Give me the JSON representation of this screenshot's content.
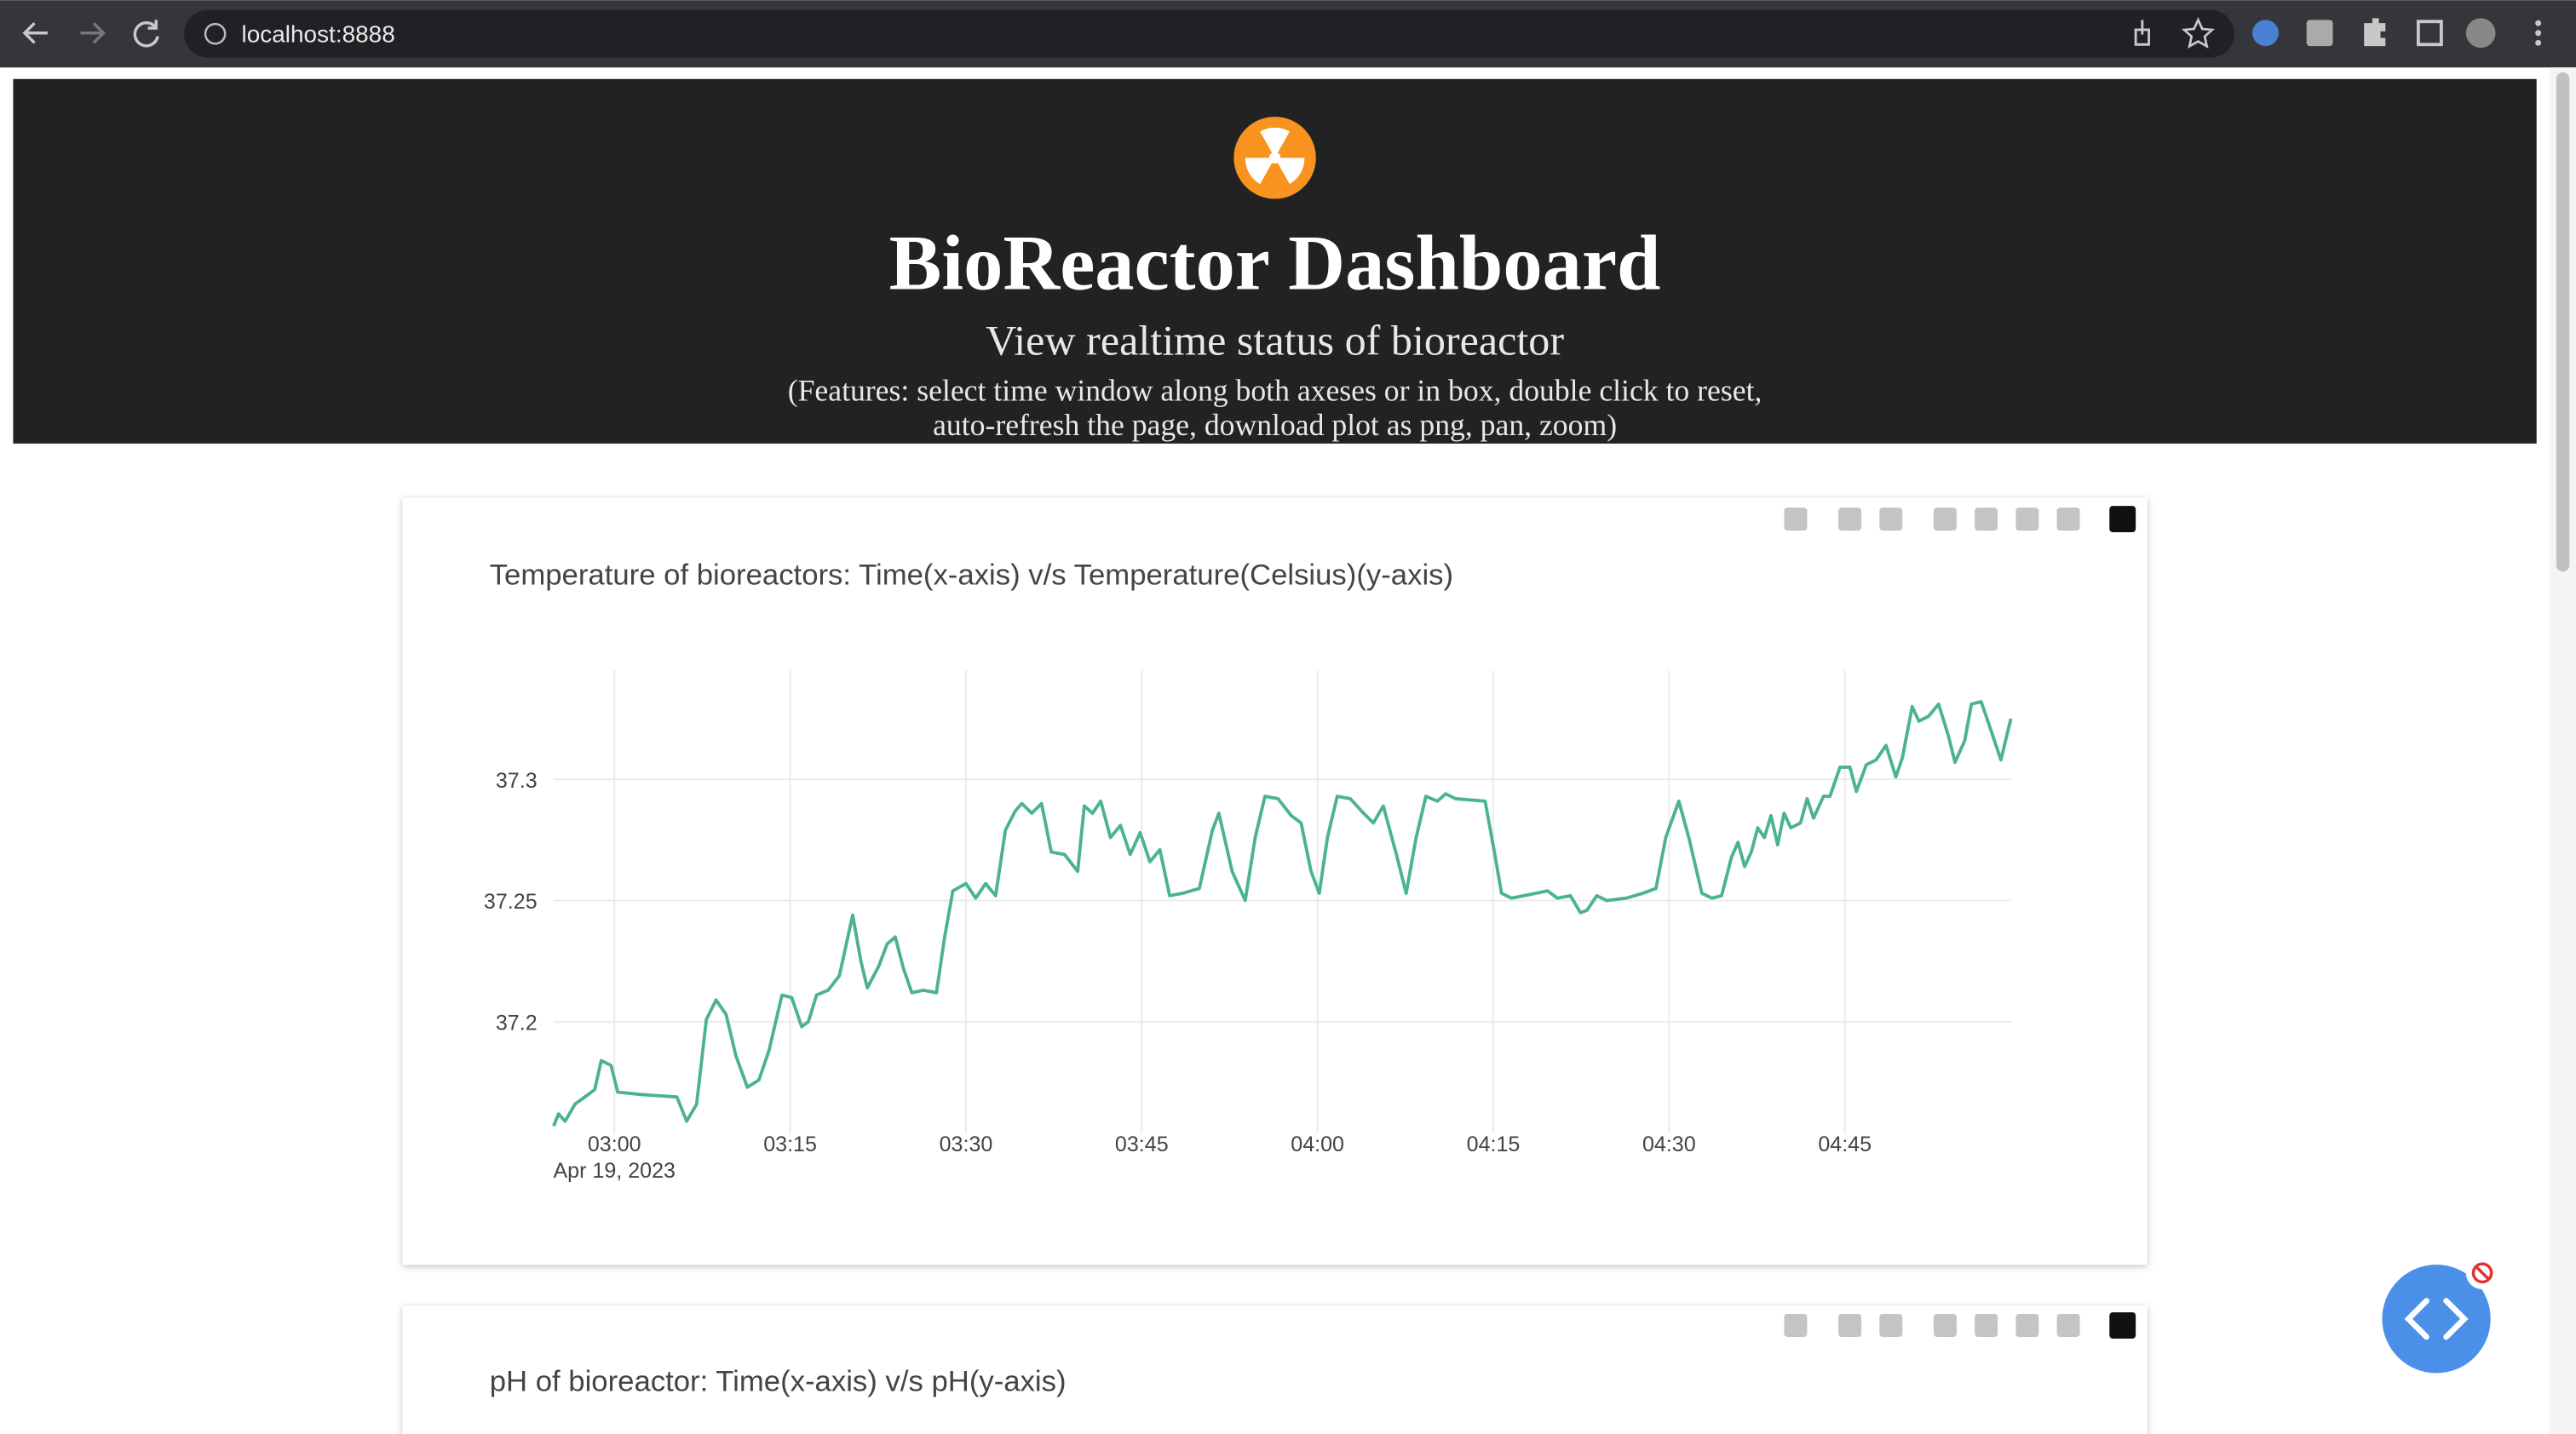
{
  "browser": {
    "url": "localhost:8888"
  },
  "header": {
    "title": "BioReactor Dashboard",
    "subtitle": "View realtime status of bioreactor",
    "features": [
      "(Features: select time window along both axeses or in box, double click to reset,",
      "auto-refresh the page, download plot as png, pan, zoom)"
    ]
  },
  "chart_data": [
    {
      "type": "line",
      "title": "Temperature of bioreactors: Time(x-axis) v/s Temperature(Celsius)(y-axis)",
      "x_date_label": "Apr 19, 2023",
      "xlim": [
        "2023-04-19 02:54:49",
        "2023-04-19 04:59:10"
      ],
      "xticks": [
        {
          "value": "2023-04-19 03:00:00",
          "label": "03:00"
        },
        {
          "value": "2023-04-19 03:15:00",
          "label": "03:15"
        },
        {
          "value": "2023-04-19 03:30:00",
          "label": "03:30"
        },
        {
          "value": "2023-04-19 03:45:00",
          "label": "03:45"
        },
        {
          "value": "2023-04-19 04:00:00",
          "label": "04:00"
        },
        {
          "value": "2023-04-19 04:15:00",
          "label": "04:15"
        },
        {
          "value": "2023-04-19 04:30:00",
          "label": "04:30"
        },
        {
          "value": "2023-04-19 04:45:00",
          "label": "04:45"
        }
      ],
      "ylim": [
        37.154,
        37.345
      ],
      "yticks": [
        37.2,
        37.25,
        37.3
      ],
      "grid": true,
      "x": [
        "2023-04-19 02:54:49",
        "2023-04-19 02:55:14",
        "2023-04-19 02:55:48",
        "2023-04-19 02:56:38",
        "2023-04-19 02:57:46",
        "2023-04-19 02:58:19",
        "2023-04-19 02:58:53",
        "2023-04-19 02:59:43",
        "2023-04-19 03:00:17",
        "2023-04-19 03:02:15",
        "2023-04-19 03:05:20",
        "2023-04-19 03:06:10",
        "2023-04-19 03:07:01",
        "2023-04-19 03:07:51",
        "2023-04-19 03:08:41",
        "2023-04-19 03:09:32",
        "2023-04-19 03:10:22",
        "2023-04-19 03:11:21",
        "2023-04-19 03:12:20",
        "2023-04-19 03:13:11",
        "2023-04-19 03:14:18",
        "2023-04-19 03:15:08",
        "2023-04-19 03:15:59",
        "2023-04-19 03:16:33",
        "2023-04-19 03:17:15",
        "2023-04-19 03:18:14",
        "2023-04-19 03:19:12",
        "2023-04-19 03:20:20",
        "2023-04-19 03:21:02",
        "2023-04-19 03:21:35",
        "2023-04-19 03:22:34",
        "2023-04-19 03:23:16",
        "2023-04-19 03:23:58",
        "2023-04-19 03:24:40",
        "2023-04-19 03:25:23",
        "2023-04-19 03:26:22",
        "2023-04-19 03:27:29",
        "2023-04-19 03:28:11",
        "2023-04-19 03:28:53",
        "2023-04-19 03:30:00",
        "2023-04-19 03:30:50",
        "2023-04-19 03:31:41",
        "2023-04-19 03:32:32",
        "2023-04-19 03:33:22",
        "2023-04-19 03:34:13",
        "2023-04-19 03:34:46",
        "2023-04-19 03:35:37",
        "2023-04-19 03:36:27",
        "2023-04-19 03:37:17",
        "2023-04-19 03:38:25",
        "2023-04-19 03:39:32",
        "2023-04-19 03:40:06",
        "2023-04-19 03:40:48",
        "2023-04-19 03:41:30",
        "2023-04-19 03:42:20",
        "2023-04-19 03:43:11",
        "2023-04-19 03:44:01",
        "2023-04-19 03:44:52",
        "2023-04-19 03:45:42",
        "2023-04-19 03:46:33",
        "2023-04-19 03:47:23",
        "2023-04-19 03:48:30",
        "2023-04-19 03:49:55",
        "2023-04-19 03:51:02",
        "2023-04-19 03:51:35",
        "2023-04-19 03:52:43",
        "2023-04-19 03:53:50",
        "2023-04-19 03:54:41",
        "2023-04-19 03:55:31",
        "2023-04-19 03:56:38",
        "2023-04-19 03:57:46",
        "2023-04-19 03:58:36",
        "2023-04-19 03:59:27",
        "2023-04-19 04:00:09",
        "2023-04-19 04:00:51",
        "2023-04-19 04:01:41",
        "2023-04-19 04:02:48",
        "2023-04-19 04:03:56",
        "2023-04-19 04:04:46",
        "2023-04-19 04:05:37",
        "2023-04-19 04:06:44",
        "2023-04-19 04:07:34",
        "2023-04-19 04:08:25",
        "2023-04-19 04:09:15",
        "2023-04-19 04:10:14",
        "2023-04-19 04:10:56",
        "2023-04-19 04:11:47",
        "2023-04-19 04:14:18",
        "2023-04-19 04:15:08",
        "2023-04-19 04:15:42",
        "2023-04-19 04:16:33",
        "2023-04-19 04:18:39",
        "2023-04-19 04:19:38",
        "2023-04-19 04:20:28",
        "2023-04-19 04:21:35",
        "2023-04-19 04:22:26",
        "2023-04-19 04:23:00",
        "2023-04-19 04:23:50",
        "2023-04-19 04:24:41",
        "2023-04-19 04:26:22",
        "2023-04-19 04:27:46",
        "2023-04-19 04:28:53",
        "2023-04-19 04:29:43",
        "2023-04-19 04:30:50",
        "2023-04-19 04:31:41",
        "2023-04-19 04:32:48",
        "2023-04-19 04:33:39",
        "2023-04-19 04:34:29",
        "2023-04-19 04:35:20",
        "2023-04-19 04:35:53",
        "2023-04-19 04:36:27",
        "2023-04-19 04:37:01",
        "2023-04-19 04:37:34",
        "2023-04-19 04:38:08",
        "2023-04-19 04:38:42",
        "2023-04-19 04:39:16",
        "2023-04-19 04:39:49",
        "2023-04-19 04:40:23",
        "2023-04-19 04:41:13",
        "2023-04-19 04:41:47",
        "2023-04-19 04:42:20",
        "2023-04-19 04:43:11",
        "2023-04-19 04:43:44",
        "2023-04-19 04:44:35",
        "2023-04-19 04:45:26",
        "2023-04-19 04:45:59",
        "2023-04-19 04:46:50",
        "2023-04-19 04:47:40",
        "2023-04-19 04:48:31",
        "2023-04-19 04:49:21",
        "2023-04-19 04:49:55",
        "2023-04-19 04:50:45",
        "2023-04-19 04:51:19",
        "2023-04-19 04:52:09",
        "2023-04-19 04:53:00",
        "2023-04-19 04:53:50",
        "2023-04-19 04:54:24",
        "2023-04-19 04:55:14",
        "2023-04-19 04:55:48",
        "2023-04-19 04:56:38",
        "2023-04-19 04:57:29",
        "2023-04-19 04:58:19",
        "2023-04-19 04:59:10"
      ],
      "series": [
        {
          "name": "Temperature",
          "color": "#4cb391",
          "values": [
            37.157,
            37.162,
            37.159,
            37.166,
            37.17,
            37.172,
            37.184,
            37.182,
            37.171,
            37.17,
            37.169,
            37.159,
            37.166,
            37.201,
            37.209,
            37.203,
            37.186,
            37.173,
            37.176,
            37.188,
            37.211,
            37.21,
            37.198,
            37.2,
            37.211,
            37.213,
            37.219,
            37.244,
            37.225,
            37.214,
            37.223,
            37.232,
            37.235,
            37.222,
            37.212,
            37.213,
            37.212,
            37.235,
            37.254,
            37.257,
            37.251,
            37.257,
            37.252,
            37.279,
            37.287,
            37.29,
            37.286,
            37.29,
            37.27,
            37.269,
            37.262,
            37.289,
            37.286,
            37.291,
            37.276,
            37.281,
            37.269,
            37.278,
            37.266,
            37.271,
            37.252,
            37.253,
            37.255,
            37.279,
            37.286,
            37.262,
            37.25,
            37.276,
            37.293,
            37.292,
            37.285,
            37.282,
            37.262,
            37.253,
            37.276,
            37.293,
            37.292,
            37.286,
            37.282,
            37.289,
            37.269,
            37.253,
            37.276,
            37.293,
            37.291,
            37.294,
            37.292,
            37.291,
            37.269,
            37.253,
            37.251,
            37.253,
            37.254,
            37.251,
            37.252,
            37.245,
            37.246,
            37.252,
            37.25,
            37.251,
            37.253,
            37.255,
            37.276,
            37.291,
            37.276,
            37.253,
            37.251,
            37.252,
            37.268,
            37.274,
            37.264,
            37.27,
            37.28,
            37.276,
            37.285,
            37.273,
            37.286,
            37.28,
            37.282,
            37.292,
            37.284,
            37.293,
            37.293,
            37.305,
            37.305,
            37.295,
            37.306,
            37.308,
            37.314,
            37.301,
            37.309,
            37.33,
            37.324,
            37.326,
            37.331,
            37.318,
            37.307,
            37.316,
            37.331,
            37.332,
            37.32,
            37.308,
            37.325
          ]
        }
      ]
    },
    {
      "type": "line",
      "title": "pH of bioreactor: Time(x-axis) v/s pH(y-axis)"
    }
  ]
}
